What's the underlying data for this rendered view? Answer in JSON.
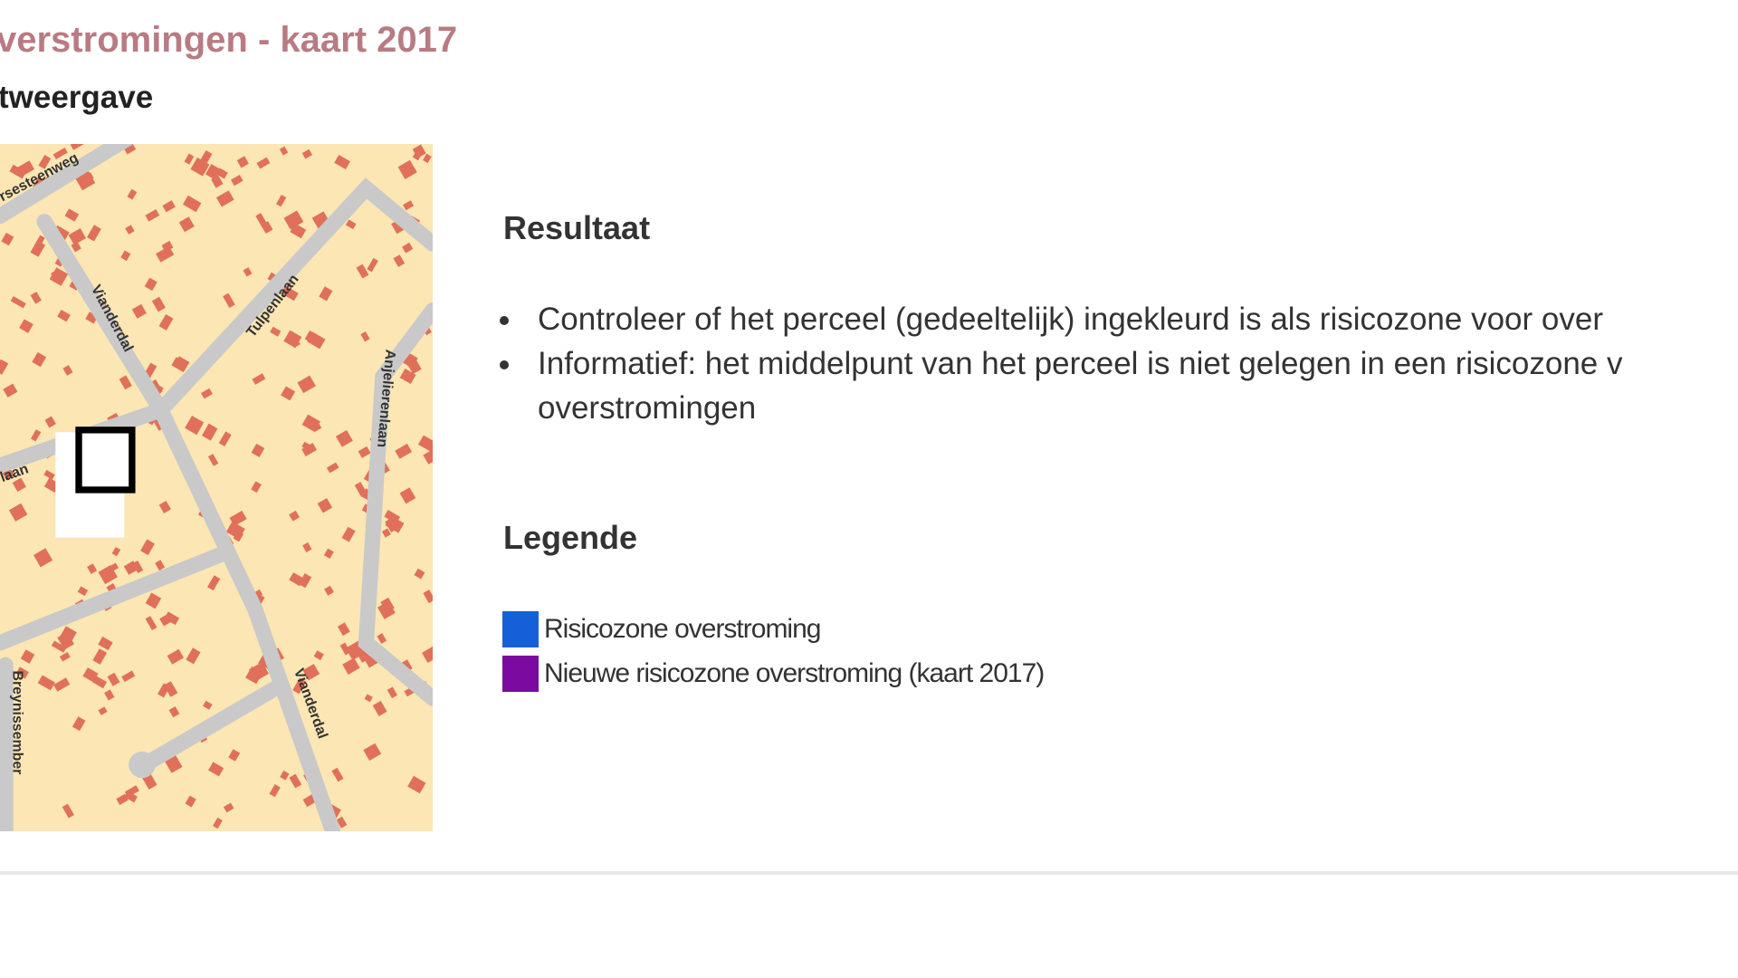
{
  "header": {
    "title": "verstromingen - kaart 2017",
    "subtitle": "tweergave"
  },
  "map": {
    "street_labels": [
      "rsesteenweg",
      "Vianderdal",
      "Tulpenlaan",
      "Anjelierenlaan",
      "laan",
      "Breynissember",
      "Vianderdal"
    ],
    "colors": {
      "background": "#fbe6b4",
      "building": "#e0705a",
      "road": "#c8c8c8"
    }
  },
  "result": {
    "heading": "Resultaat",
    "items": [
      "Controleer of het perceel (gedeeltelijk) ingekleurd is als risicozone voor over",
      "Informatief: het middelpunt van het perceel is niet gelegen in een risicozone v",
      "overstromingen"
    ]
  },
  "legend": {
    "heading": "Legende",
    "items": [
      {
        "label": "Risicozone overstroming",
        "color": "#1560d8"
      },
      {
        "label": "Nieuwe risicozone overstroming (kaart 2017)",
        "color": "#7a0aa0"
      }
    ]
  }
}
